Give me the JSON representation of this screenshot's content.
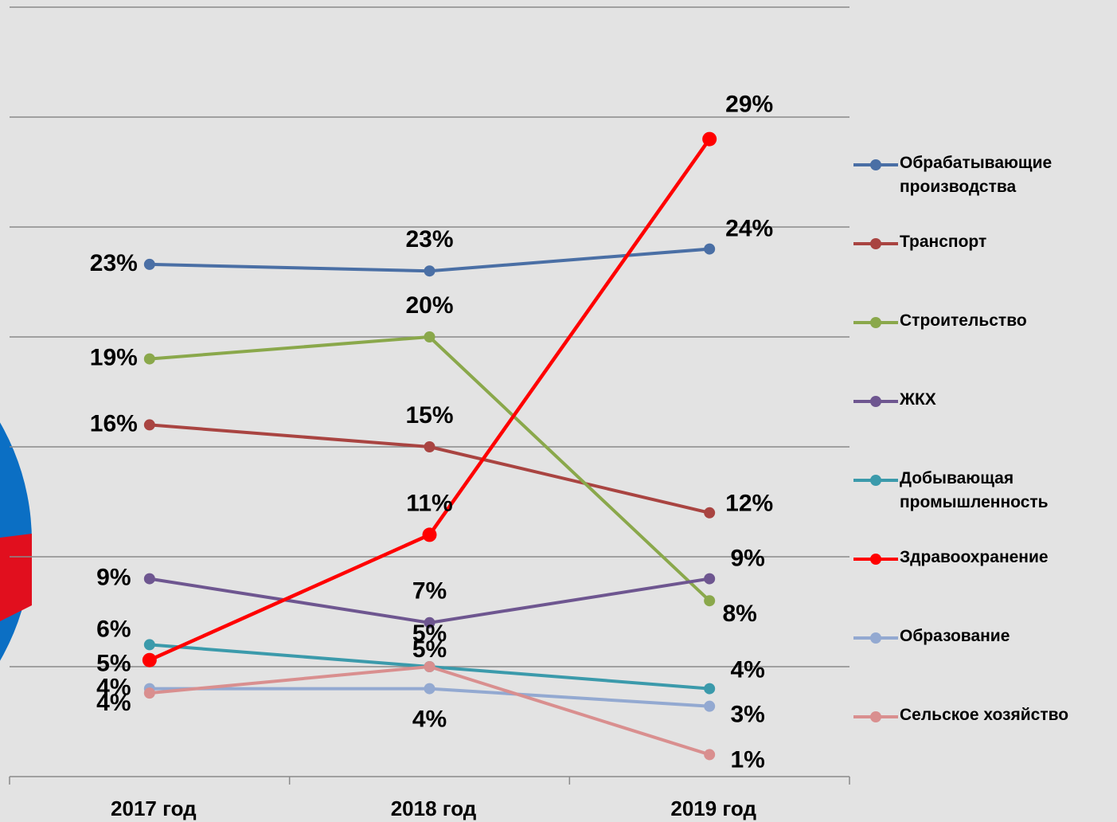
{
  "chart_data": {
    "type": "line",
    "categories": [
      "2017 год",
      "2018 год",
      "2019 год"
    ],
    "ylim": [
      0,
      35
    ],
    "yticks": [
      0,
      5,
      10,
      15,
      20,
      25,
      30,
      35
    ],
    "grid": true,
    "series": [
      {
        "name": "Обрабатывающие производства",
        "color": "#4a6fa5",
        "values": [
          23.3,
          23.0,
          24.0
        ],
        "value_labels": [
          "23%",
          "23%",
          "24%"
        ]
      },
      {
        "name": "Транспорт",
        "color": "#a94441",
        "values": [
          16.0,
          15.0,
          12.0
        ],
        "value_labels": [
          "16%",
          "15%",
          "12%"
        ]
      },
      {
        "name": "Строительство",
        "color": "#8aa84b",
        "values": [
          19.0,
          20.0,
          8.0
        ],
        "value_labels": [
          "19%",
          "20%",
          "8%"
        ]
      },
      {
        "name": "ЖКХ",
        "color": "#6e5690",
        "values": [
          9.0,
          7.0,
          9.0
        ],
        "value_labels": [
          "9%",
          "7%",
          "9%"
        ]
      },
      {
        "name": "Добывающая промышленность",
        "color": "#3b9aab",
        "values": [
          6.0,
          5.0,
          4.0
        ],
        "value_labels": [
          "6%",
          "5%",
          "4%"
        ]
      },
      {
        "name": "Здравоохранение",
        "color": "#ff0000",
        "values": [
          5.3,
          11.0,
          29.0
        ],
        "value_labels": [
          "5%",
          "11%",
          "29%"
        ]
      },
      {
        "name": "Образование",
        "color": "#93a9d1",
        "values": [
          4.0,
          4.0,
          3.2
        ],
        "value_labels": [
          "4%",
          "4%",
          "3%"
        ]
      },
      {
        "name": "Сельское хозяйство",
        "color": "#d98f8f",
        "values": [
          3.8,
          5.0,
          1.0
        ],
        "value_labels": [
          "4%",
          "5%",
          "1%"
        ]
      }
    ]
  }
}
